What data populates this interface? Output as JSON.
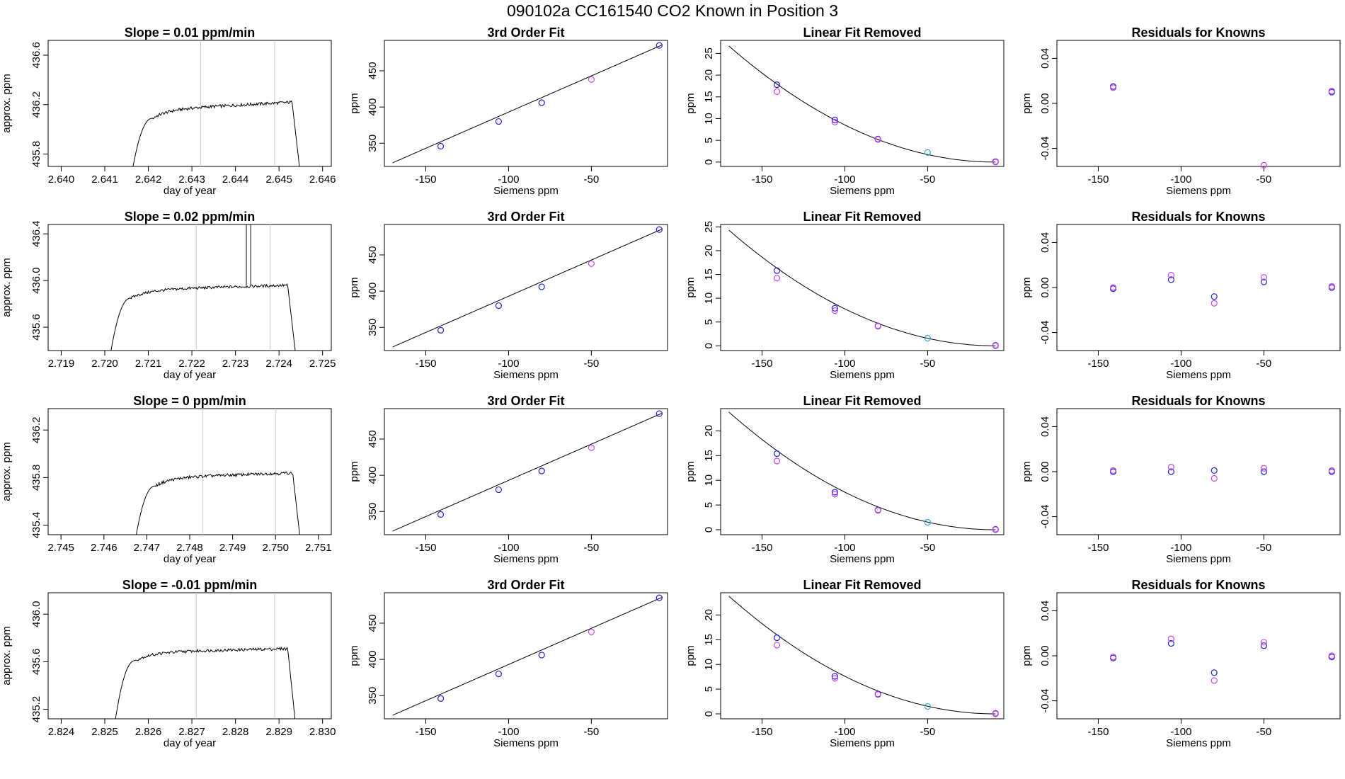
{
  "header": {
    "title": "090102a      CC161540    CO2 Known in Position  3"
  },
  "colors": {
    "line": "#000000",
    "window_line": "#c8c8c8",
    "blue_point": "#2222dd",
    "magenta_point": "#cc44ee",
    "cyan_point": "#22aacc"
  },
  "chart_data": [
    {
      "type": "line",
      "row": 0,
      "kind": "slope",
      "title": "Slope =  0.01  ppm/min",
      "xlabel": "day of year",
      "ylabel": "approx. ppm",
      "xlim": [
        2.6397,
        2.6462
      ],
      "ylim": [
        435.7,
        436.72
      ],
      "xticks": [
        "2.640",
        "2.641",
        "2.642",
        "2.643",
        "2.644",
        "2.645",
        "2.646"
      ],
      "yticks": [
        "435.8",
        "436.2",
        "436.6"
      ],
      "window": [
        2.6432,
        2.6449
      ],
      "trace": {
        "start": 2.6416,
        "rise_end": 2.6421,
        "plateau_end": 2.6453,
        "stop": 2.6455,
        "base": 435.6,
        "level_start": 436.16,
        "level_end": 436.22,
        "noise": 0.012
      },
      "spikes": []
    },
    {
      "type": "line",
      "row": 1,
      "kind": "slope",
      "title": "Slope =  0.02  ppm/min",
      "xlabel": "day of year",
      "ylabel": "approx. ppm",
      "xlim": [
        2.7187,
        2.7252
      ],
      "ylim": [
        435.4,
        436.48
      ],
      "xticks": [
        "2.719",
        "2.720",
        "2.721",
        "2.722",
        "2.723",
        "2.724",
        "2.725"
      ],
      "yticks": [
        "435.6",
        "436.0",
        "436.4"
      ],
      "window": [
        2.7221,
        2.7238
      ],
      "trace": {
        "start": 2.7201,
        "rise_end": 2.7206,
        "plateau_end": 2.7242,
        "stop": 2.7244,
        "base": 435.3,
        "level_start": 435.92,
        "level_end": 435.96,
        "noise": 0.012
      },
      "spikes": [
        2.72325,
        2.72335
      ]
    },
    {
      "type": "line",
      "row": 2,
      "kind": "slope",
      "title": "Slope =  0  ppm/min",
      "xlabel": "day of year",
      "ylabel": "approx. ppm",
      "xlim": [
        2.7447,
        2.7513
      ],
      "ylim": [
        435.32,
        436.38
      ],
      "xticks": [
        "2.745",
        "2.746",
        "2.747",
        "2.748",
        "2.749",
        "2.750",
        "2.751"
      ],
      "yticks": [
        "435.4",
        "435.8",
        "436.2"
      ],
      "window": [
        2.7483,
        2.75
      ],
      "trace": {
        "start": 2.7467,
        "rise_end": 2.7472,
        "plateau_end": 2.7504,
        "stop": 2.7506,
        "base": 435.2,
        "level_start": 435.8,
        "level_end": 435.84,
        "noise": 0.012
      },
      "spikes": []
    },
    {
      "type": "line",
      "row": 3,
      "kind": "slope",
      "title": "Slope =  -0.01  ppm/min",
      "xlabel": "day of year",
      "ylabel": "approx. ppm",
      "xlim": [
        2.8237,
        2.8302
      ],
      "ylim": [
        435.12,
        436.18
      ],
      "xticks": [
        "2.824",
        "2.825",
        "2.826",
        "2.827",
        "2.828",
        "2.829",
        "2.830"
      ],
      "yticks": [
        "435.2",
        "435.6",
        "436.0"
      ],
      "window": [
        2.8271,
        2.8289
      ],
      "trace": {
        "start": 2.8252,
        "rise_end": 2.8257,
        "plateau_end": 2.8292,
        "stop": 2.8294,
        "base": 435.0,
        "level_start": 435.68,
        "level_end": 435.71,
        "noise": 0.012
      },
      "spikes": []
    },
    {
      "type": "scatter",
      "row": 0,
      "kind": "fit",
      "title": "3rd Order Fit",
      "xlabel": "Siemens ppm",
      "ylabel": "ppm",
      "xlim": [
        -175,
        -4
      ],
      "ylim": [
        318,
        492
      ],
      "xticks": [
        "-150",
        "-100",
        "-50"
      ],
      "yticks": [
        "350",
        "400",
        "450"
      ],
      "curve": {
        "type": "linear",
        "x0": -170,
        "x1": -7,
        "y0": 323,
        "y1": 486
      },
      "points": [
        {
          "x": -141,
          "y": 346,
          "color": "blue"
        },
        {
          "x": -106,
          "y": 380,
          "color": "blue"
        },
        {
          "x": -80,
          "y": 406,
          "color": "blue"
        },
        {
          "x": -50,
          "y": 438,
          "color": "magenta"
        },
        {
          "x": -9,
          "y": 485,
          "color": "blue"
        }
      ]
    },
    {
      "type": "scatter",
      "row": 1,
      "kind": "fit",
      "title": "3rd Order Fit",
      "xlabel": "Siemens ppm",
      "ylabel": "ppm",
      "xlim": [
        -175,
        -4
      ],
      "ylim": [
        318,
        492
      ],
      "xticks": [
        "-150",
        "-100",
        "-50"
      ],
      "yticks": [
        "350",
        "400",
        "450"
      ],
      "curve": {
        "type": "linear",
        "x0": -170,
        "x1": -7,
        "y0": 323,
        "y1": 486
      },
      "points": [
        {
          "x": -141,
          "y": 346,
          "color": "blue"
        },
        {
          "x": -106,
          "y": 380,
          "color": "blue"
        },
        {
          "x": -80,
          "y": 406,
          "color": "blue"
        },
        {
          "x": -50,
          "y": 438,
          "color": "magenta"
        },
        {
          "x": -9,
          "y": 485,
          "color": "blue"
        }
      ]
    },
    {
      "type": "scatter",
      "row": 2,
      "kind": "fit",
      "title": "3rd Order Fit",
      "xlabel": "Siemens ppm",
      "ylabel": "ppm",
      "xlim": [
        -175,
        -4
      ],
      "ylim": [
        318,
        492
      ],
      "xticks": [
        "-150",
        "-100",
        "-50"
      ],
      "yticks": [
        "350",
        "400",
        "450"
      ],
      "curve": {
        "type": "linear",
        "x0": -170,
        "x1": -7,
        "y0": 323,
        "y1": 486
      },
      "points": [
        {
          "x": -141,
          "y": 346,
          "color": "blue"
        },
        {
          "x": -106,
          "y": 380,
          "color": "blue"
        },
        {
          "x": -80,
          "y": 406,
          "color": "blue"
        },
        {
          "x": -50,
          "y": 438,
          "color": "magenta"
        },
        {
          "x": -9,
          "y": 485,
          "color": "blue"
        }
      ]
    },
    {
      "type": "scatter",
      "row": 3,
      "kind": "fit",
      "title": "3rd Order Fit",
      "xlabel": "Siemens ppm",
      "ylabel": "ppm",
      "xlim": [
        -175,
        -4
      ],
      "ylim": [
        318,
        492
      ],
      "xticks": [
        "-150",
        "-100",
        "-50"
      ],
      "yticks": [
        "350",
        "400",
        "450"
      ],
      "curve": {
        "type": "linear",
        "x0": -170,
        "x1": -7,
        "y0": 323,
        "y1": 486
      },
      "points": [
        {
          "x": -141,
          "y": 346,
          "color": "blue"
        },
        {
          "x": -106,
          "y": 380,
          "color": "blue"
        },
        {
          "x": -80,
          "y": 406,
          "color": "blue"
        },
        {
          "x": -50,
          "y": 438,
          "color": "magenta"
        },
        {
          "x": -9,
          "y": 485,
          "color": "blue"
        }
      ]
    },
    {
      "type": "scatter",
      "row": 0,
      "kind": "linfit",
      "title": "Linear Fit Removed",
      "xlabel": "Siemens ppm",
      "ylabel": "ppm",
      "xlim": [
        -175,
        -4
      ],
      "ylim": [
        -1,
        28
      ],
      "xticks": [
        "-150",
        "-100",
        "-50"
      ],
      "yticks": [
        "0",
        "5",
        "10",
        "15",
        "20",
        "25"
      ],
      "curve": {
        "type": "quadratic",
        "x0": -170,
        "x1": -9,
        "y0": 26.7,
        "vertex_x": -9,
        "vertex_y": 0
      },
      "points": [
        {
          "x": -141,
          "y": 17.8,
          "color": "blue"
        },
        {
          "x": -141,
          "y": 16.2,
          "color": "magenta"
        },
        {
          "x": -106,
          "y": 9.7,
          "color": "blue"
        },
        {
          "x": -106,
          "y": 9.2,
          "color": "magenta"
        },
        {
          "x": -80,
          "y": 5.3,
          "color": "blue"
        },
        {
          "x": -80,
          "y": 5.2,
          "color": "magenta"
        },
        {
          "x": -50,
          "y": 2.2,
          "color": "cyan"
        },
        {
          "x": -9,
          "y": 0.1,
          "color": "blue"
        },
        {
          "x": -9,
          "y": 0.0,
          "color": "magenta"
        }
      ]
    },
    {
      "type": "scatter",
      "row": 1,
      "kind": "linfit",
      "title": "Linear Fit Removed",
      "xlabel": "Siemens ppm",
      "ylabel": "ppm",
      "xlim": [
        -175,
        -4
      ],
      "ylim": [
        -1,
        25.5
      ],
      "xticks": [
        "-150",
        "-100",
        "-50"
      ],
      "yticks": [
        "0",
        "5",
        "10",
        "15",
        "20",
        "25"
      ],
      "curve": {
        "type": "quadratic",
        "x0": -170,
        "x1": -9,
        "y0": 24.3,
        "vertex_x": -9,
        "vertex_y": 0
      },
      "points": [
        {
          "x": -141,
          "y": 15.8,
          "color": "blue"
        },
        {
          "x": -141,
          "y": 14.2,
          "color": "magenta"
        },
        {
          "x": -106,
          "y": 7.9,
          "color": "blue"
        },
        {
          "x": -106,
          "y": 7.4,
          "color": "magenta"
        },
        {
          "x": -80,
          "y": 4.2,
          "color": "blue"
        },
        {
          "x": -80,
          "y": 4.1,
          "color": "magenta"
        },
        {
          "x": -50,
          "y": 1.6,
          "color": "cyan"
        },
        {
          "x": -9,
          "y": 0.1,
          "color": "blue"
        },
        {
          "x": -9,
          "y": 0.0,
          "color": "magenta"
        }
      ]
    },
    {
      "type": "scatter",
      "row": 2,
      "kind": "linfit",
      "title": "Linear Fit Removed",
      "xlabel": "Siemens ppm",
      "ylabel": "ppm",
      "xlim": [
        -175,
        -4
      ],
      "ylim": [
        -1,
        24.5
      ],
      "xticks": [
        "-150",
        "-100",
        "-50"
      ],
      "yticks": [
        "0",
        "5",
        "10",
        "15",
        "20"
      ],
      "curve": {
        "type": "quadratic",
        "x0": -170,
        "x1": -9,
        "y0": 23.8,
        "vertex_x": -9,
        "vertex_y": 0
      },
      "points": [
        {
          "x": -141,
          "y": 15.4,
          "color": "blue"
        },
        {
          "x": -141,
          "y": 13.9,
          "color": "magenta"
        },
        {
          "x": -106,
          "y": 7.6,
          "color": "blue"
        },
        {
          "x": -106,
          "y": 7.2,
          "color": "magenta"
        },
        {
          "x": -80,
          "y": 4.0,
          "color": "blue"
        },
        {
          "x": -80,
          "y": 3.9,
          "color": "magenta"
        },
        {
          "x": -50,
          "y": 1.5,
          "color": "cyan"
        },
        {
          "x": -9,
          "y": 0.1,
          "color": "blue"
        },
        {
          "x": -9,
          "y": 0.0,
          "color": "magenta"
        }
      ]
    },
    {
      "type": "scatter",
      "row": 3,
      "kind": "linfit",
      "title": "Linear Fit Removed",
      "xlabel": "Siemens ppm",
      "ylabel": "ppm",
      "xlim": [
        -175,
        -4
      ],
      "ylim": [
        -1,
        24.5
      ],
      "xticks": [
        "-150",
        "-100",
        "-50"
      ],
      "yticks": [
        "0",
        "5",
        "10",
        "15",
        "20"
      ],
      "curve": {
        "type": "quadratic",
        "x0": -170,
        "x1": -9,
        "y0": 23.8,
        "vertex_x": -9,
        "vertex_y": 0
      },
      "points": [
        {
          "x": -141,
          "y": 15.4,
          "color": "blue"
        },
        {
          "x": -141,
          "y": 13.9,
          "color": "magenta"
        },
        {
          "x": -106,
          "y": 7.6,
          "color": "blue"
        },
        {
          "x": -106,
          "y": 7.2,
          "color": "magenta"
        },
        {
          "x": -80,
          "y": 4.0,
          "color": "blue"
        },
        {
          "x": -80,
          "y": 3.9,
          "color": "magenta"
        },
        {
          "x": -50,
          "y": 1.5,
          "color": "cyan"
        },
        {
          "x": -9,
          "y": 0.1,
          "color": "blue"
        },
        {
          "x": -9,
          "y": 0.0,
          "color": "magenta"
        }
      ]
    },
    {
      "type": "scatter",
      "row": 0,
      "kind": "resid",
      "title": "Residuals for Knowns",
      "xlabel": "Siemens ppm",
      "ylabel": "ppm",
      "xlim": [
        -175,
        -4
      ],
      "ylim": [
        -0.056,
        0.056
      ],
      "xticks": [
        "-150",
        "-100",
        "-50"
      ],
      "yticks": [
        "-0.04",
        "0.00",
        "0.04"
      ],
      "points": [
        {
          "x": -141,
          "y": 0.015,
          "color": "blue"
        },
        {
          "x": -141,
          "y": 0.014,
          "color": "magenta"
        },
        {
          "x": -50,
          "y": -0.055,
          "color": "magenta"
        },
        {
          "x": -9,
          "y": 0.01,
          "color": "blue"
        },
        {
          "x": -9,
          "y": 0.011,
          "color": "magenta"
        }
      ]
    },
    {
      "type": "scatter",
      "row": 1,
      "kind": "resid",
      "title": "Residuals for Knowns",
      "xlabel": "Siemens ppm",
      "ylabel": "ppm",
      "xlim": [
        -175,
        -4
      ],
      "ylim": [
        -0.056,
        0.056
      ],
      "xticks": [
        "-150",
        "-100",
        "-50"
      ],
      "yticks": [
        "-0.04",
        "0.00",
        "0.04"
      ],
      "points": [
        {
          "x": -141,
          "y": -0.001,
          "color": "blue"
        },
        {
          "x": -141,
          "y": 0.0,
          "color": "magenta"
        },
        {
          "x": -106,
          "y": 0.007,
          "color": "blue"
        },
        {
          "x": -106,
          "y": 0.011,
          "color": "magenta"
        },
        {
          "x": -80,
          "y": -0.008,
          "color": "blue"
        },
        {
          "x": -80,
          "y": -0.014,
          "color": "magenta"
        },
        {
          "x": -50,
          "y": 0.005,
          "color": "blue"
        },
        {
          "x": -50,
          "y": 0.009,
          "color": "magenta"
        },
        {
          "x": -9,
          "y": 0.0,
          "color": "blue"
        },
        {
          "x": -9,
          "y": 0.001,
          "color": "magenta"
        }
      ]
    },
    {
      "type": "scatter",
      "row": 2,
      "kind": "resid",
      "title": "Residuals for Knowns",
      "xlabel": "Siemens ppm",
      "ylabel": "ppm",
      "xlim": [
        -175,
        -4
      ],
      "ylim": [
        -0.056,
        0.056
      ],
      "xticks": [
        "-150",
        "-100",
        "-50"
      ],
      "yticks": [
        "-0.04",
        "0.00",
        "0.04"
      ],
      "points": [
        {
          "x": -141,
          "y": 0.0,
          "color": "blue"
        },
        {
          "x": -141,
          "y": 0.001,
          "color": "magenta"
        },
        {
          "x": -106,
          "y": 0.0,
          "color": "blue"
        },
        {
          "x": -106,
          "y": 0.004,
          "color": "magenta"
        },
        {
          "x": -80,
          "y": 0.001,
          "color": "blue"
        },
        {
          "x": -80,
          "y": -0.006,
          "color": "magenta"
        },
        {
          "x": -50,
          "y": 0.0,
          "color": "blue"
        },
        {
          "x": -50,
          "y": 0.003,
          "color": "magenta"
        },
        {
          "x": -9,
          "y": 0.0,
          "color": "blue"
        },
        {
          "x": -9,
          "y": 0.001,
          "color": "magenta"
        }
      ]
    },
    {
      "type": "scatter",
      "row": 3,
      "kind": "resid",
      "title": "Residuals for Knowns",
      "xlabel": "Siemens ppm",
      "ylabel": "ppm",
      "xlim": [
        -175,
        -4
      ],
      "ylim": [
        -0.056,
        0.056
      ],
      "xticks": [
        "-150",
        "-100",
        "-50"
      ],
      "yticks": [
        "-0.04",
        "0.00",
        "0.04"
      ],
      "points": [
        {
          "x": -141,
          "y": -0.002,
          "color": "blue"
        },
        {
          "x": -141,
          "y": -0.001,
          "color": "magenta"
        },
        {
          "x": -106,
          "y": 0.011,
          "color": "blue"
        },
        {
          "x": -106,
          "y": 0.015,
          "color": "magenta"
        },
        {
          "x": -80,
          "y": -0.015,
          "color": "blue"
        },
        {
          "x": -80,
          "y": -0.022,
          "color": "magenta"
        },
        {
          "x": -50,
          "y": 0.009,
          "color": "blue"
        },
        {
          "x": -50,
          "y": 0.012,
          "color": "magenta"
        },
        {
          "x": -9,
          "y": -0.001,
          "color": "blue"
        },
        {
          "x": -9,
          "y": 0.0,
          "color": "magenta"
        }
      ]
    }
  ]
}
